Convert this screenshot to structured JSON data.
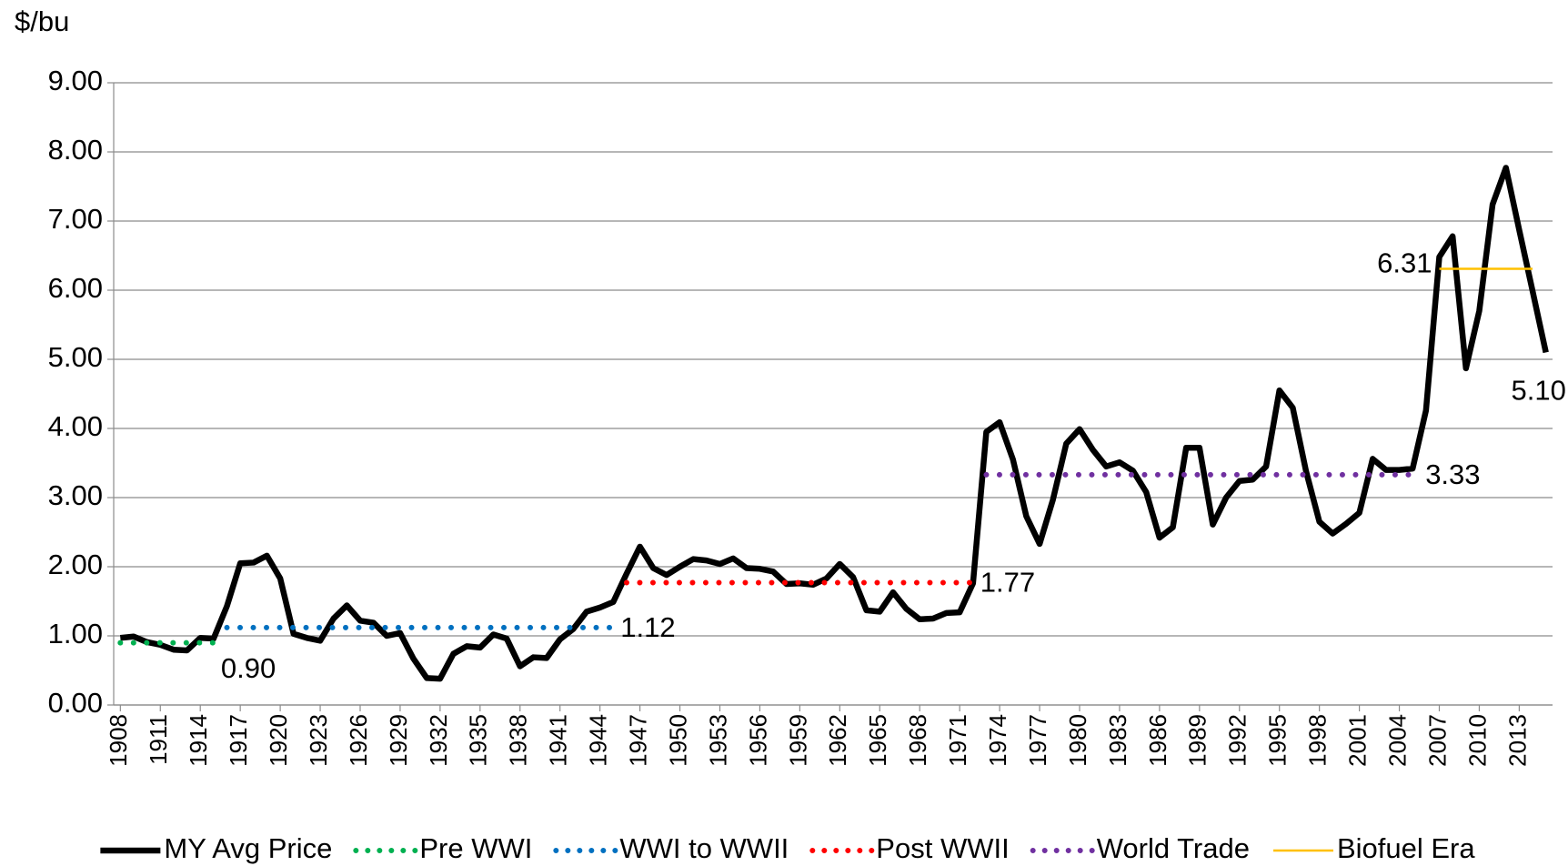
{
  "chart_data": {
    "type": "line",
    "y_axis_label": "$/bu",
    "ylim": [
      0,
      9
    ],
    "yticks": [
      {
        "value": 0,
        "label": "0.00"
      },
      {
        "value": 1,
        "label": "1.00"
      },
      {
        "value": 2,
        "label": "2.00"
      },
      {
        "value": 3,
        "label": "3.00"
      },
      {
        "value": 4,
        "label": "4.00"
      },
      {
        "value": 5,
        "label": "5.00"
      },
      {
        "value": 6,
        "label": "6.00"
      },
      {
        "value": 7,
        "label": "7.00"
      },
      {
        "value": 8,
        "label": "8.00"
      },
      {
        "value": 9,
        "label": "9.00"
      }
    ],
    "xlim": [
      1907.5,
      2015.5
    ],
    "xticks": [
      1908,
      1911,
      1914,
      1917,
      1920,
      1923,
      1926,
      1929,
      1932,
      1935,
      1938,
      1941,
      1944,
      1947,
      1950,
      1953,
      1956,
      1959,
      1962,
      1965,
      1968,
      1971,
      1974,
      1977,
      1980,
      1983,
      1986,
      1989,
      1992,
      1995,
      1998,
      2001,
      2004,
      2007,
      2010,
      2013
    ],
    "grid": true,
    "legend": "bottom",
    "series": [
      {
        "name": "MY Avg Price",
        "color": "#000000",
        "line_style": "solid",
        "x": [
          1908,
          1909,
          1910,
          1911,
          1912,
          1913,
          1914,
          1915,
          1916,
          1917,
          1918,
          1919,
          1920,
          1921,
          1922,
          1923,
          1924,
          1925,
          1926,
          1927,
          1928,
          1929,
          1930,
          1931,
          1932,
          1933,
          1934,
          1935,
          1936,
          1937,
          1938,
          1939,
          1940,
          1941,
          1942,
          1943,
          1944,
          1945,
          1946,
          1947,
          1948,
          1949,
          1950,
          1951,
          1952,
          1953,
          1954,
          1955,
          1956,
          1957,
          1958,
          1959,
          1960,
          1961,
          1962,
          1963,
          1964,
          1965,
          1966,
          1967,
          1968,
          1969,
          1970,
          1971,
          1972,
          1973,
          1974,
          1975,
          1976,
          1977,
          1978,
          1979,
          1980,
          1981,
          1982,
          1983,
          1984,
          1985,
          1986,
          1987,
          1988,
          1989,
          1990,
          1991,
          1992,
          1993,
          1994,
          1995,
          1996,
          1997,
          1998,
          1999,
          2000,
          2001,
          2002,
          2003,
          2004,
          2005,
          2006,
          2007,
          2008,
          2009,
          2010,
          2011,
          2012,
          2013,
          2014,
          2015
        ],
        "values": [
          0.97,
          0.99,
          0.91,
          0.87,
          0.8,
          0.79,
          0.97,
          0.96,
          1.43,
          2.05,
          2.06,
          2.16,
          1.83,
          1.03,
          0.97,
          0.93,
          1.25,
          1.44,
          1.22,
          1.19,
          1.0,
          1.04,
          0.67,
          0.39,
          0.38,
          0.74,
          0.85,
          0.83,
          1.02,
          0.96,
          0.56,
          0.69,
          0.68,
          0.95,
          1.1,
          1.35,
          1.41,
          1.49,
          1.9,
          2.29,
          1.98,
          1.88,
          2.0,
          2.11,
          2.09,
          2.04,
          2.12,
          1.98,
          1.97,
          1.93,
          1.75,
          1.76,
          1.74,
          1.83,
          2.04,
          1.85,
          1.37,
          1.35,
          1.63,
          1.39,
          1.24,
          1.25,
          1.33,
          1.34,
          1.76,
          3.95,
          4.09,
          3.55,
          2.73,
          2.33,
          2.97,
          3.78,
          3.99,
          3.69,
          3.45,
          3.51,
          3.39,
          3.08,
          2.42,
          2.57,
          3.72,
          3.72,
          2.61,
          3.0,
          3.24,
          3.26,
          3.45,
          4.55,
          4.3,
          3.38,
          2.65,
          2.48,
          2.62,
          2.78,
          3.56,
          3.4,
          3.4,
          3.42,
          4.26,
          6.48,
          6.78,
          4.87,
          5.7,
          7.24,
          7.77,
          6.87,
          5.99,
          5.1
        ],
        "value_labels": [
          null,
          null,
          null,
          null,
          null,
          null,
          null,
          null,
          null,
          null,
          null,
          null,
          null,
          null,
          null,
          null,
          null,
          null,
          null,
          null,
          null,
          null,
          null,
          null,
          null,
          null,
          null,
          null,
          null,
          null,
          null,
          null,
          null,
          null,
          null,
          null,
          null,
          null,
          null,
          null,
          null,
          null,
          null,
          null,
          null,
          null,
          null,
          null,
          null,
          null,
          null,
          null,
          null,
          null,
          null,
          null,
          null,
          null,
          null,
          null,
          null,
          null,
          null,
          null,
          null,
          null,
          null,
          null,
          null,
          null,
          null,
          null,
          null,
          null,
          null,
          null,
          null,
          null,
          null,
          null,
          null,
          null,
          null,
          null,
          null,
          null,
          null,
          null,
          null,
          null,
          null,
          null,
          null,
          null,
          null,
          null,
          null,
          null,
          null,
          null,
          null,
          null,
          null,
          null,
          null,
          null,
          null,
          "5.10"
        ]
      },
      {
        "name": "Pre WWI",
        "color": "#00b050",
        "line_style": "dotted",
        "x": [
          1908,
          1909,
          1910,
          1911,
          1912,
          1913,
          1914,
          1915
        ],
        "values": [
          0.9,
          0.9,
          0.9,
          0.9,
          0.9,
          0.9,
          0.9,
          0.9
        ],
        "value_labels": [
          null,
          null,
          null,
          null,
          null,
          null,
          null,
          "0.90"
        ]
      },
      {
        "name": "WWI to WWII",
        "color": "#0070c0",
        "line_style": "dotted",
        "x": [
          1916,
          1917,
          1918,
          1919,
          1920,
          1921,
          1922,
          1923,
          1924,
          1925,
          1926,
          1927,
          1928,
          1929,
          1930,
          1931,
          1932,
          1933,
          1934,
          1935,
          1936,
          1937,
          1938,
          1939,
          1940,
          1941,
          1942,
          1943,
          1944,
          1945
        ],
        "values": [
          1.12,
          1.12,
          1.12,
          1.12,
          1.12,
          1.12,
          1.12,
          1.12,
          1.12,
          1.12,
          1.12,
          1.12,
          1.12,
          1.12,
          1.12,
          1.12,
          1.12,
          1.12,
          1.12,
          1.12,
          1.12,
          1.12,
          1.12,
          1.12,
          1.12,
          1.12,
          1.12,
          1.12,
          1.12,
          1.12
        ],
        "value_labels": [
          null,
          null,
          null,
          null,
          null,
          null,
          null,
          null,
          null,
          null,
          null,
          null,
          null,
          null,
          null,
          null,
          null,
          null,
          null,
          null,
          null,
          null,
          null,
          null,
          null,
          null,
          null,
          null,
          null,
          "1.12"
        ]
      },
      {
        "name": "Post WWII",
        "color": "#ff0000",
        "line_style": "dotted",
        "x": [
          1946,
          1947,
          1948,
          1949,
          1950,
          1951,
          1952,
          1953,
          1954,
          1955,
          1956,
          1957,
          1958,
          1959,
          1960,
          1961,
          1962,
          1963,
          1964,
          1965,
          1966,
          1967,
          1968,
          1969,
          1970,
          1971,
          1972
        ],
        "values": [
          1.77,
          1.77,
          1.77,
          1.77,
          1.77,
          1.77,
          1.77,
          1.77,
          1.77,
          1.77,
          1.77,
          1.77,
          1.77,
          1.77,
          1.77,
          1.77,
          1.77,
          1.77,
          1.77,
          1.77,
          1.77,
          1.77,
          1.77,
          1.77,
          1.77,
          1.77,
          1.77
        ],
        "value_labels": [
          null,
          null,
          null,
          null,
          null,
          null,
          null,
          null,
          null,
          null,
          null,
          null,
          null,
          null,
          null,
          null,
          null,
          null,
          null,
          null,
          null,
          null,
          null,
          null,
          null,
          null,
          "1.77"
        ]
      },
      {
        "name": "World Trade",
        "color": "#7030a0",
        "line_style": "dotted",
        "x": [
          1973,
          1974,
          1975,
          1976,
          1977,
          1978,
          1979,
          1980,
          1981,
          1982,
          1983,
          1984,
          1985,
          1986,
          1987,
          1988,
          1989,
          1990,
          1991,
          1992,
          1993,
          1994,
          1995,
          1996,
          1997,
          1998,
          1999,
          2000,
          2001,
          2002,
          2003,
          2004,
          2005
        ],
        "values": [
          3.33,
          3.33,
          3.33,
          3.33,
          3.33,
          3.33,
          3.33,
          3.33,
          3.33,
          3.33,
          3.33,
          3.33,
          3.33,
          3.33,
          3.33,
          3.33,
          3.33,
          3.33,
          3.33,
          3.33,
          3.33,
          3.33,
          3.33,
          3.33,
          3.33,
          3.33,
          3.33,
          3.33,
          3.33,
          3.33,
          3.33,
          3.33,
          3.33
        ],
        "value_labels": [
          null,
          null,
          null,
          null,
          null,
          null,
          null,
          null,
          null,
          null,
          null,
          null,
          null,
          null,
          null,
          null,
          null,
          null,
          null,
          null,
          null,
          null,
          null,
          null,
          null,
          null,
          null,
          null,
          null,
          null,
          null,
          null,
          "3.33"
        ]
      },
      {
        "name": "Biofuel Era",
        "color": "#ffc000",
        "line_style": "solid",
        "x": [
          2007,
          2008,
          2009,
          2010,
          2011,
          2012,
          2013,
          2014
        ],
        "values": [
          6.31,
          6.31,
          6.31,
          6.31,
          6.31,
          6.31,
          6.31,
          6.31
        ],
        "value_labels": [
          "6.31",
          null,
          null,
          null,
          null,
          null,
          null,
          null
        ]
      }
    ]
  }
}
